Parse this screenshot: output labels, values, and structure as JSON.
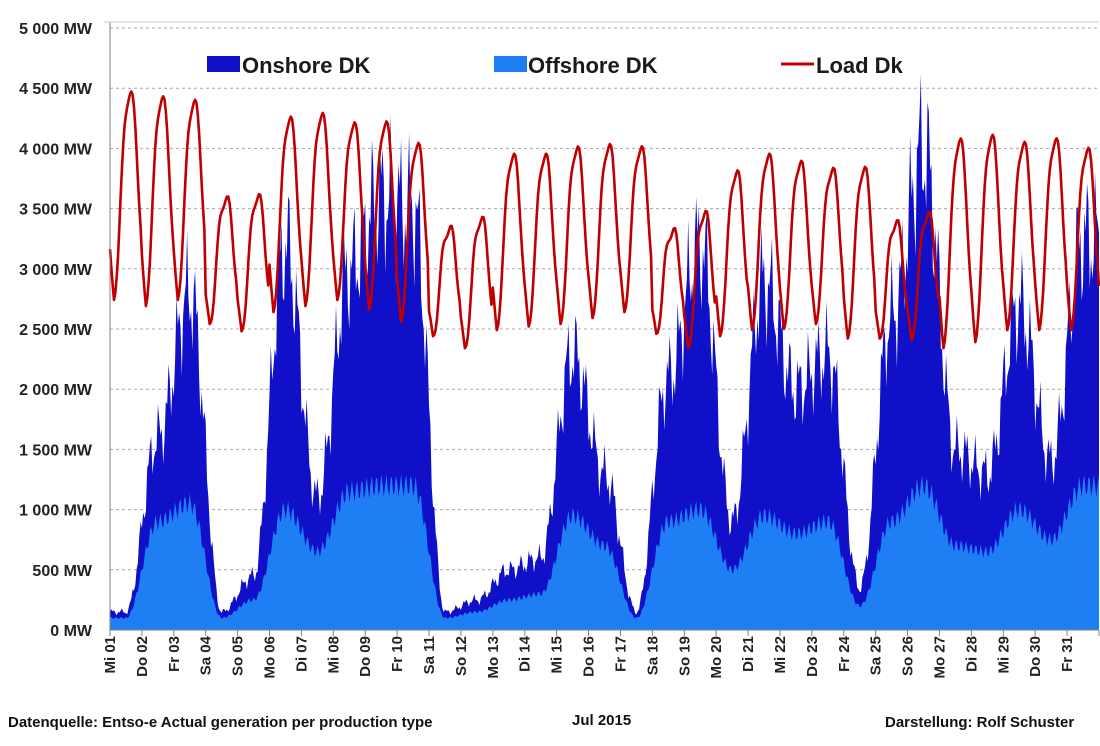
{
  "chart_data": {
    "type": "area",
    "title": "",
    "xlabel": "Jul 2015",
    "ylabel": "",
    "ylim": [
      0,
      5000
    ],
    "yticks": [
      0,
      500,
      1000,
      1500,
      2000,
      2500,
      3000,
      3500,
      4000,
      4500,
      5000
    ],
    "ytick_labels": [
      "0 MW",
      "500 MW",
      "1 000 MW",
      "1 500 MW",
      "2 000 MW",
      "2 500 MW",
      "3 000 MW",
      "3 500 MW",
      "4 000 MW",
      "4 500 MW",
      "5 000 MW"
    ],
    "x_categories": [
      "Mi 01",
      "Do 02",
      "Fr 03",
      "Sa 04",
      "So 05",
      "Mo 06",
      "Di 07",
      "Mi 08",
      "Do 09",
      "Fr 10",
      "Sa 11",
      "So 12",
      "Mo 13",
      "Di 14",
      "Mi 15",
      "Do 16",
      "Fr 17",
      "Sa 18",
      "So 19",
      "Mo 20",
      "Di 21",
      "Mi 22",
      "Do 23",
      "Fr 24",
      "Sa 25",
      "So 26",
      "Mo 27",
      "Di 28",
      "Mi 29",
      "Do 30",
      "Fr 31"
    ],
    "grid": true,
    "legend_position": "top",
    "colors": {
      "onshore": "#1010c8",
      "offshore": "#1e7ff5",
      "load": "#c00000",
      "grid": "#a8a8a8"
    },
    "series": [
      {
        "name": "Onshore DK",
        "kind": "area",
        "note": "stacked total (onshore + offshore), approximate daily peaks",
        "values": [
          150,
          1600,
          2800,
          150,
          450,
          3200,
          1100,
          3000,
          3600,
          3500,
          150,
          250,
          500,
          600,
          2300,
          1300,
          150,
          2100,
          3200,
          900,
          2900,
          2000,
          2300,
          350,
          2600,
          4000,
          1500,
          1300,
          2700,
          1400,
          3250
        ]
      },
      {
        "name": "Offshore DK",
        "kind": "area",
        "note": "approximate daily peaks",
        "values": [
          100,
          900,
          1050,
          100,
          250,
          1000,
          650,
          1150,
          1200,
          1200,
          100,
          150,
          250,
          300,
          950,
          700,
          100,
          900,
          1000,
          500,
          950,
          800,
          900,
          200,
          900,
          1200,
          700,
          650,
          1000,
          750,
          1200
        ]
      },
      {
        "name": "Load Dk",
        "kind": "line",
        "note": "approximate daily peak / trough",
        "peaks": [
          4480,
          4440,
          4410,
          3600,
          3620,
          4270,
          4300,
          4220,
          4230,
          4050,
          3350,
          3430,
          3960,
          3960,
          4020,
          4040,
          4020,
          3330,
          3480,
          3820,
          3960,
          3900,
          3840,
          3850,
          3400,
          3470,
          4090,
          4120,
          4060,
          4090,
          4010
        ],
        "troughs": [
          2700,
          2650,
          2700,
          2500,
          2440,
          2600,
          2650,
          2700,
          2620,
          2520,
          2400,
          2300,
          2450,
          2480,
          2500,
          2550,
          2600,
          2420,
          2300,
          2400,
          2450,
          2460,
          2500,
          2380,
          2380,
          2370,
          2300,
          2350,
          2450,
          2450,
          2450
        ]
      }
    ],
    "legend": [
      "Onshore DK",
      "Offshore DK",
      "Load Dk"
    ]
  },
  "footer": {
    "source": "Datenquelle: Entso-e  Actual generation per production type",
    "month": "Jul 2015",
    "credit": "Darstellung: Rolf Schuster"
  }
}
